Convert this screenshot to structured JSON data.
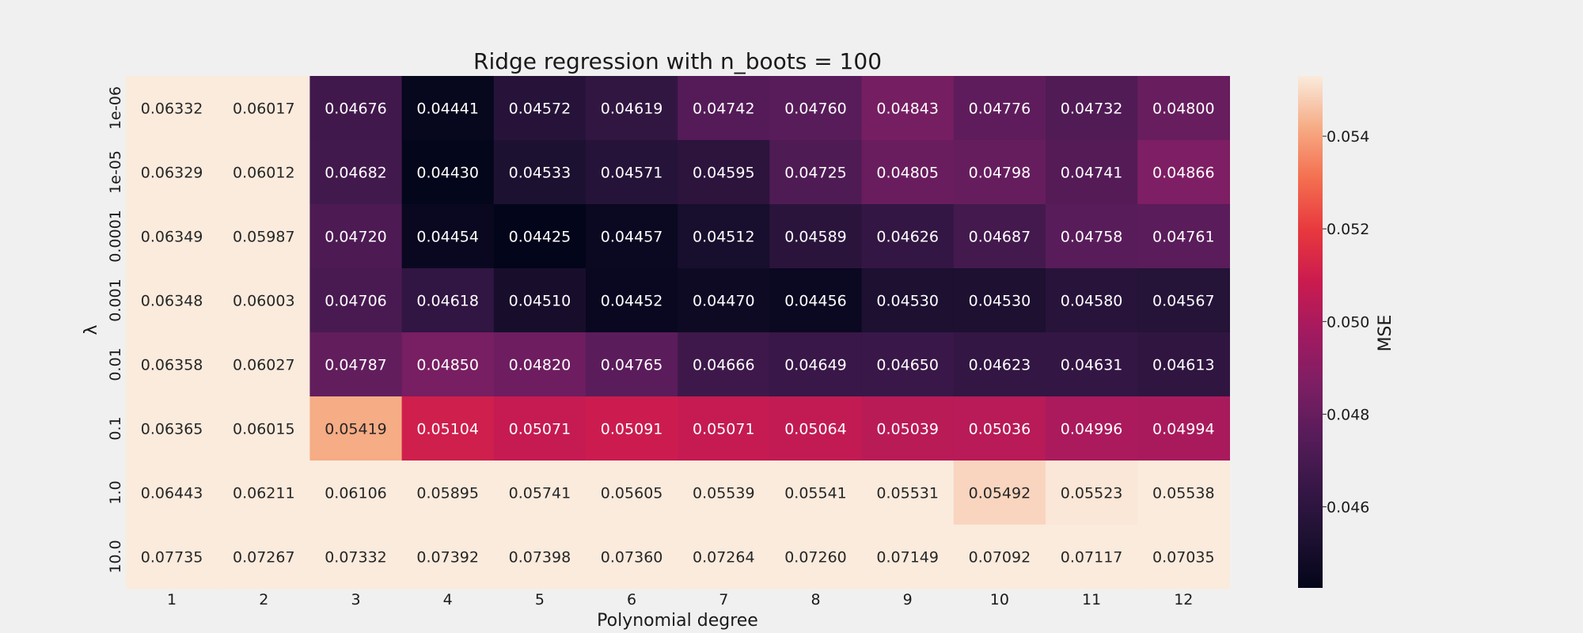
{
  "chart_data": {
    "type": "heatmap",
    "title": "Ridge regression with n_boots = 100",
    "xlabel": "Polynomial degree",
    "ylabel": "λ",
    "colorbar_label": "MSE",
    "colormap": "rocket",
    "x_categories": [
      "1",
      "2",
      "3",
      "4",
      "5",
      "6",
      "7",
      "8",
      "9",
      "10",
      "11",
      "12"
    ],
    "y_categories": [
      "1e-06",
      "1e-05",
      "0.0001",
      "0.001",
      "0.01",
      "0.1",
      "1.0",
      "10.0"
    ],
    "values": [
      [
        0.06332,
        0.06017,
        0.04676,
        0.04441,
        0.04572,
        0.04619,
        0.04742,
        0.0476,
        0.04843,
        0.04776,
        0.04732,
        0.048
      ],
      [
        0.06329,
        0.06012,
        0.04682,
        0.0443,
        0.04533,
        0.04571,
        0.04595,
        0.04725,
        0.04805,
        0.04798,
        0.04741,
        0.04866
      ],
      [
        0.06349,
        0.05987,
        0.0472,
        0.04454,
        0.04425,
        0.04457,
        0.04512,
        0.04589,
        0.04626,
        0.04687,
        0.04758,
        0.04761
      ],
      [
        0.06348,
        0.06003,
        0.04706,
        0.04618,
        0.0451,
        0.04452,
        0.0447,
        0.04456,
        0.0453,
        0.0453,
        0.0458,
        0.04567
      ],
      [
        0.06358,
        0.06027,
        0.04787,
        0.0485,
        0.0482,
        0.04765,
        0.04666,
        0.04649,
        0.0465,
        0.04623,
        0.04631,
        0.04613
      ],
      [
        0.06365,
        0.06015,
        0.05419,
        0.05104,
        0.05071,
        0.05091,
        0.05071,
        0.05064,
        0.05039,
        0.05036,
        0.04996,
        0.04994
      ],
      [
        0.06443,
        0.06211,
        0.06106,
        0.05895,
        0.05741,
        0.05605,
        0.05539,
        0.05541,
        0.05531,
        0.05492,
        0.05523,
        0.05538
      ],
      [
        0.07735,
        0.07267,
        0.07332,
        0.07392,
        0.07398,
        0.0736,
        0.07264,
        0.0726,
        0.07149,
        0.07092,
        0.07117,
        0.07035
      ]
    ],
    "value_format": "%.5f",
    "color_range": [
      0.04425,
      0.0553
    ],
    "colorbar_ticks": [
      0.046,
      0.048,
      0.05,
      0.052,
      0.054
    ],
    "colorbar_tick_labels": [
      "0.046",
      "0.048",
      "0.050",
      "0.052",
      "0.054"
    ]
  }
}
